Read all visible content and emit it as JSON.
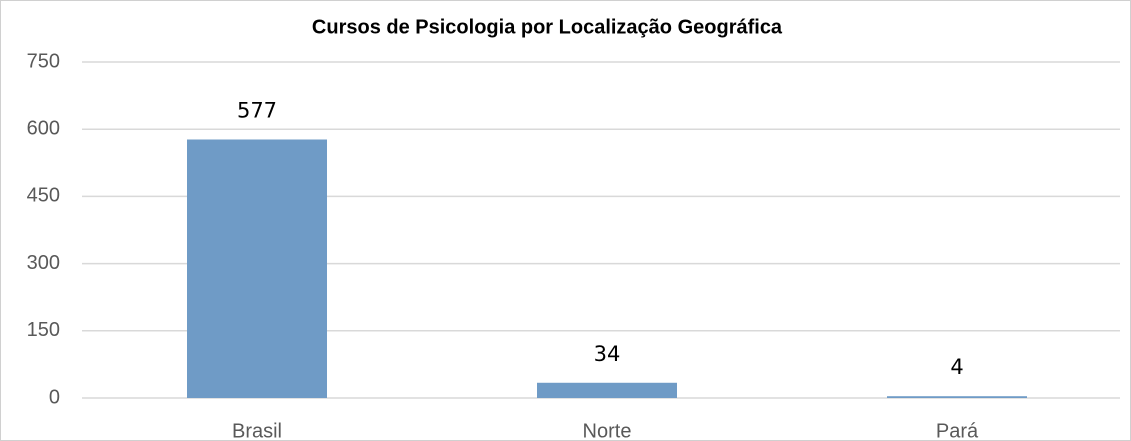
{
  "chart_data": {
    "type": "bar",
    "title": "Cursos de Psicologia por Localização Geográfica",
    "categories": [
      "Brasil",
      "Norte",
      "Pará"
    ],
    "values": [
      577,
      34,
      4
    ],
    "color": "#6f9bc6",
    "ylim": [
      0,
      750
    ],
    "yticks": [
      0,
      150,
      300,
      450,
      600,
      750
    ],
    "grid": true
  }
}
